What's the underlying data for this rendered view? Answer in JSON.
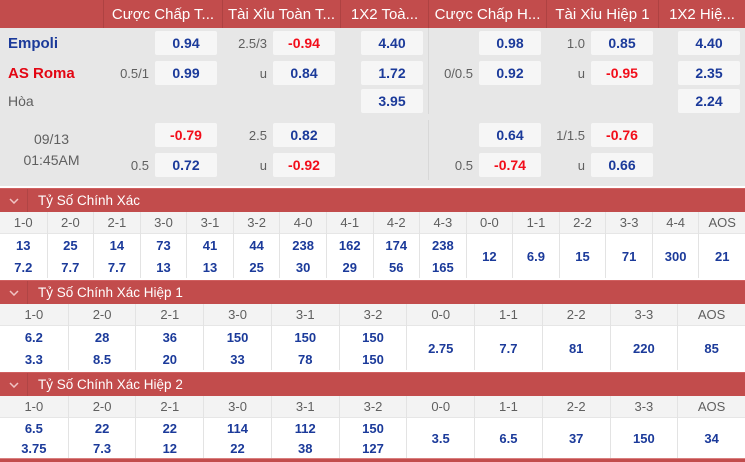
{
  "colors": {
    "header_red": "#c24c4c",
    "odds_blue": "#1b3a9a",
    "odds_negative_red": "#f20d1a",
    "away_team_red": "#e30613"
  },
  "top_table": {
    "headers": [
      "",
      "Cược Chấp T...",
      "Tài Xỉu Toàn T...",
      "1X2 Toà...",
      "Cược Chấp H...",
      "Tài Xỉu Hiệp 1",
      "1X2 Hiệ..."
    ],
    "groups": [
      {
        "rows": [
          {
            "team": "Empoli",
            "type": "home",
            "cells": [
              {
                "h": "",
                "o": "0.94"
              },
              {
                "h": "2.5/3",
                "o": "-0.94"
              },
              {
                "o": "4.40"
              },
              {
                "h": "",
                "o": "0.98"
              },
              {
                "h": "1.0",
                "o": "0.85"
              },
              {
                "o": "4.40"
              }
            ]
          },
          {
            "team": "AS Roma",
            "type": "away",
            "cells": [
              {
                "h": "0.5/1",
                "o": "0.99"
              },
              {
                "h": "u",
                "o": "0.84"
              },
              {
                "o": "1.72"
              },
              {
                "h": "0/0.5",
                "o": "0.92"
              },
              {
                "h": "u",
                "o": "-0.95"
              },
              {
                "o": "2.35"
              }
            ]
          },
          {
            "team": "Hòa",
            "type": "draw",
            "cells": [
              null,
              null,
              {
                "o": "3.95"
              },
              null,
              null,
              {
                "o": "2.24"
              }
            ]
          }
        ]
      },
      {
        "date": [
          "09/13",
          "01:45AM"
        ],
        "rows": [
          {
            "cells": [
              {
                "h": "",
                "o": "-0.79"
              },
              {
                "h": "2.5",
                "o": "0.82"
              },
              null,
              {
                "h": "",
                "o": "0.64"
              },
              {
                "h": "1/1.5",
                "o": "-0.76"
              },
              null
            ]
          },
          {
            "cells": [
              {
                "h": "0.5",
                "o": "0.72"
              },
              {
                "h": "u",
                "o": "-0.92"
              },
              null,
              {
                "h": "0.5",
                "o": "-0.74"
              },
              {
                "h": "u",
                "o": "0.66"
              },
              null
            ]
          }
        ]
      }
    ]
  },
  "sections": [
    {
      "title": "Tỷ Số Chính Xác",
      "columns": [
        {
          "label": "1-0",
          "values": [
            "13",
            "7.2"
          ]
        },
        {
          "label": "2-0",
          "values": [
            "25",
            "7.7"
          ]
        },
        {
          "label": "2-1",
          "values": [
            "14",
            "7.7"
          ]
        },
        {
          "label": "3-0",
          "values": [
            "73",
            "13"
          ]
        },
        {
          "label": "3-1",
          "values": [
            "41",
            "13"
          ]
        },
        {
          "label": "3-2",
          "values": [
            "44",
            "25"
          ]
        },
        {
          "label": "4-0",
          "values": [
            "238",
            "30"
          ]
        },
        {
          "label": "4-1",
          "values": [
            "162",
            "29"
          ]
        },
        {
          "label": "4-2",
          "values": [
            "174",
            "56"
          ]
        },
        {
          "label": "4-3",
          "values": [
            "238",
            "165"
          ]
        },
        {
          "label": "0-0",
          "values": [
            "12"
          ]
        },
        {
          "label": "1-1",
          "values": [
            "6.9"
          ]
        },
        {
          "label": "2-2",
          "values": [
            "15"
          ]
        },
        {
          "label": "3-3",
          "values": [
            "71"
          ]
        },
        {
          "label": "4-4",
          "values": [
            "300"
          ]
        },
        {
          "label": "AOS",
          "values": [
            "21"
          ]
        }
      ]
    },
    {
      "title": "Tỷ Số Chính Xác Hiệp 1",
      "columns": [
        {
          "label": "1-0",
          "values": [
            "6.2",
            "3.3"
          ]
        },
        {
          "label": "2-0",
          "values": [
            "28",
            "8.5"
          ]
        },
        {
          "label": "2-1",
          "values": [
            "36",
            "20"
          ]
        },
        {
          "label": "3-0",
          "values": [
            "150",
            "33"
          ]
        },
        {
          "label": "3-1",
          "values": [
            "150",
            "78"
          ]
        },
        {
          "label": "3-2",
          "values": [
            "150",
            "150"
          ]
        },
        {
          "label": "0-0",
          "values": [
            "2.75"
          ]
        },
        {
          "label": "1-1",
          "values": [
            "7.7"
          ]
        },
        {
          "label": "2-2",
          "values": [
            "81"
          ]
        },
        {
          "label": "3-3",
          "values": [
            "220"
          ]
        },
        {
          "label": "AOS",
          "values": [
            "85"
          ]
        }
      ]
    },
    {
      "title": "Tỷ Số Chính Xác Hiệp 2",
      "columns": [
        {
          "label": "1-0",
          "values": [
            "6.5",
            "3.75"
          ]
        },
        {
          "label": "2-0",
          "values": [
            "22",
            "7.3"
          ]
        },
        {
          "label": "2-1",
          "values": [
            "22",
            "12"
          ]
        },
        {
          "label": "3-0",
          "values": [
            "114",
            "22"
          ]
        },
        {
          "label": "3-1",
          "values": [
            "112",
            "38"
          ]
        },
        {
          "label": "3-2",
          "values": [
            "150",
            "127"
          ]
        },
        {
          "label": "0-0",
          "values": [
            "3.5"
          ]
        },
        {
          "label": "1-1",
          "values": [
            "6.5"
          ]
        },
        {
          "label": "2-2",
          "values": [
            "37"
          ]
        },
        {
          "label": "3-3",
          "values": [
            "150"
          ]
        },
        {
          "label": "AOS",
          "values": [
            "34"
          ]
        }
      ]
    }
  ]
}
